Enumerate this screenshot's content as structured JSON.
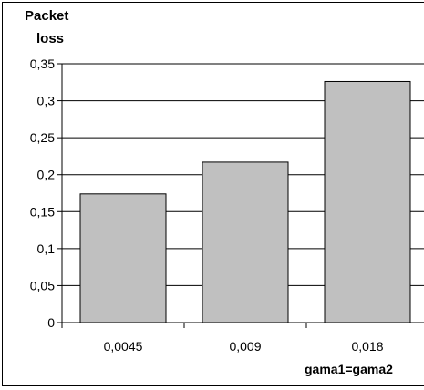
{
  "chart_data": {
    "type": "bar",
    "ylabel_line1": "Packet",
    "ylabel_line2": "loss",
    "xlabel": "gama1=gama2",
    "categories": [
      "0,0045",
      "0,009",
      "0,018"
    ],
    "values": [
      0.174,
      0.217,
      0.326
    ],
    "ylim": [
      0,
      0.35
    ],
    "yticks": [
      0,
      0.05,
      0.1,
      0.15,
      0.2,
      0.25,
      0.3,
      0.35
    ],
    "ytick_labels": [
      "0",
      "0,05",
      "0,1",
      "0,15",
      "0,2",
      "0,25",
      "0,3",
      "0,35"
    ],
    "grid": true,
    "bar_color": "#c0c0c0",
    "bar_edge_color": "#000000"
  }
}
